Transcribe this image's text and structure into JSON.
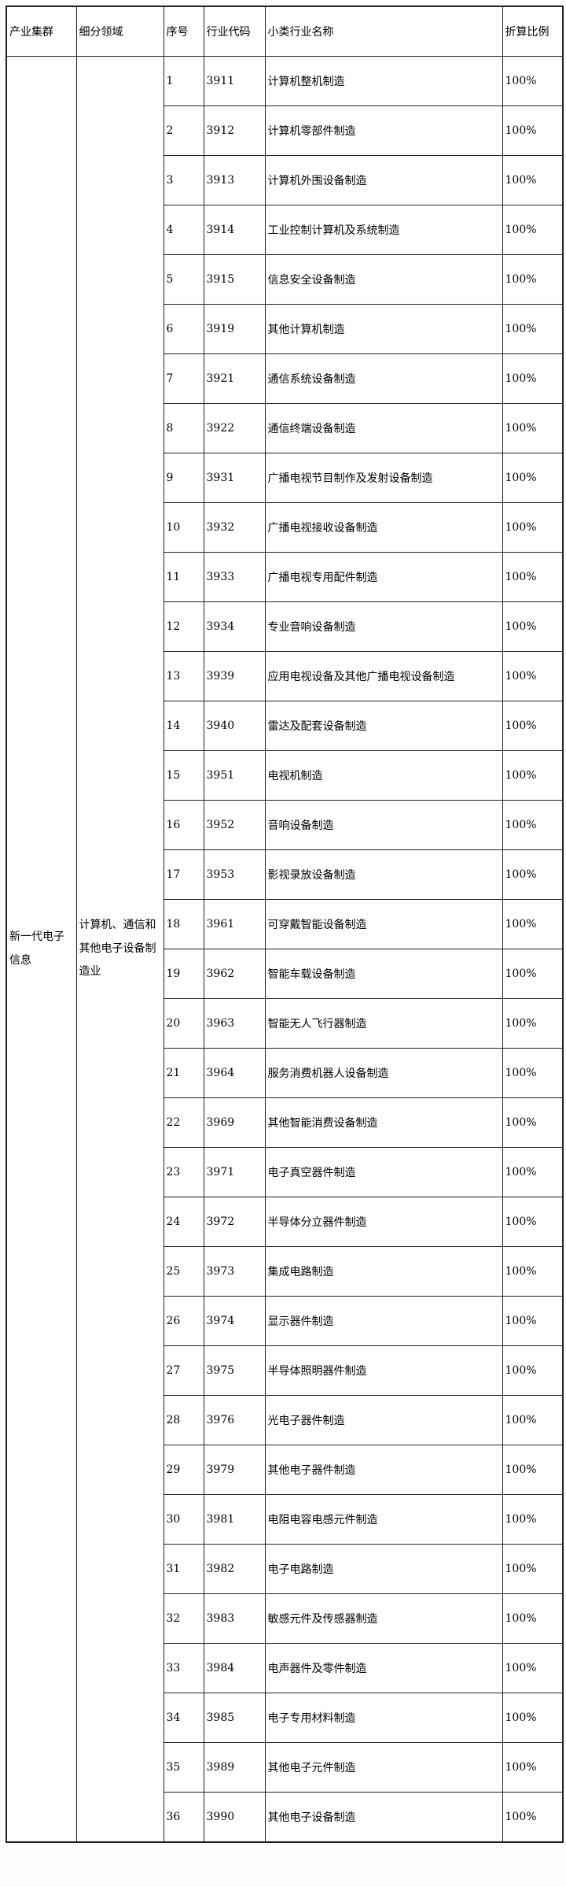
{
  "page": {
    "background": "#fdfdfd",
    "table_border_color": "#212121",
    "cell_background": "#ffffff"
  },
  "table": {
    "headers": {
      "cluster": "产业集群",
      "field": "细分领域",
      "no": "序号",
      "code": "行业代码",
      "name": "小类行业名称",
      "ratio": "折算比例"
    },
    "cluster": "新一代电子信息",
    "field": "计算机、通信和其他电子设备制造业",
    "rows": [
      {
        "no": "1",
        "code": "3911",
        "name": "计算机整机制造",
        "ratio": "100%"
      },
      {
        "no": "2",
        "code": "3912",
        "name": "计算机零部件制造",
        "ratio": "100%"
      },
      {
        "no": "3",
        "code": "3913",
        "name": "计算机外围设备制造",
        "ratio": "100%"
      },
      {
        "no": "4",
        "code": "3914",
        "name": "工业控制计算机及系统制造",
        "ratio": "100%"
      },
      {
        "no": "5",
        "code": "3915",
        "name": "信息安全设备制造",
        "ratio": "100%"
      },
      {
        "no": "6",
        "code": "3919",
        "name": "其他计算机制造",
        "ratio": "100%"
      },
      {
        "no": "7",
        "code": "3921",
        "name": "通信系统设备制造",
        "ratio": "100%"
      },
      {
        "no": "8",
        "code": "3922",
        "name": "通信终端设备制造",
        "ratio": "100%"
      },
      {
        "no": "9",
        "code": "3931",
        "name": "广播电视节目制作及发射设备制造",
        "ratio": "100%"
      },
      {
        "no": "10",
        "code": "3932",
        "name": "广播电视接收设备制造",
        "ratio": "100%"
      },
      {
        "no": "11",
        "code": "3933",
        "name": "广播电视专用配件制造",
        "ratio": "100%"
      },
      {
        "no": "12",
        "code": "3934",
        "name": "专业音响设备制造",
        "ratio": "100%"
      },
      {
        "no": "13",
        "code": "3939",
        "name": "应用电视设备及其他广播电视设备制造",
        "ratio": "100%"
      },
      {
        "no": "14",
        "code": "3940",
        "name": "雷达及配套设备制造",
        "ratio": "100%"
      },
      {
        "no": "15",
        "code": "3951",
        "name": "电视机制造",
        "ratio": "100%"
      },
      {
        "no": "16",
        "code": "3952",
        "name": "音响设备制造",
        "ratio": "100%"
      },
      {
        "no": "17",
        "code": "3953",
        "name": "影视录放设备制造",
        "ratio": "100%"
      },
      {
        "no": "18",
        "code": "3961",
        "name": "可穿戴智能设备制造",
        "ratio": "100%"
      },
      {
        "no": "19",
        "code": "3962",
        "name": "智能车载设备制造",
        "ratio": "100%"
      },
      {
        "no": "20",
        "code": "3963",
        "name": "智能无人飞行器制造",
        "ratio": "100%"
      },
      {
        "no": "21",
        "code": "3964",
        "name": "服务消费机器人设备制造",
        "ratio": "100%"
      },
      {
        "no": "22",
        "code": "3969",
        "name": "其他智能消费设备制造",
        "ratio": "100%"
      },
      {
        "no": "23",
        "code": "3971",
        "name": "电子真空器件制造",
        "ratio": "100%"
      },
      {
        "no": "24",
        "code": "3972",
        "name": "半导体分立器件制造",
        "ratio": "100%"
      },
      {
        "no": "25",
        "code": "3973",
        "name": "集成电路制造",
        "ratio": "100%"
      },
      {
        "no": "26",
        "code": "3974",
        "name": "显示器件制造",
        "ratio": "100%"
      },
      {
        "no": "27",
        "code": "3975",
        "name": "半导体照明器件制造",
        "ratio": "100%"
      },
      {
        "no": "28",
        "code": "3976",
        "name": "光电子器件制造",
        "ratio": "100%"
      },
      {
        "no": "29",
        "code": "3979",
        "name": "其他电子器件制造",
        "ratio": "100%"
      },
      {
        "no": "30",
        "code": "3981",
        "name": "电阻电容电感元件制造",
        "ratio": "100%"
      },
      {
        "no": "31",
        "code": "3982",
        "name": "电子电路制造",
        "ratio": "100%"
      },
      {
        "no": "32",
        "code": "3983",
        "name": "敏感元件及传感器制造",
        "ratio": "100%"
      },
      {
        "no": "33",
        "code": "3984",
        "name": "电声器件及零件制造",
        "ratio": "100%"
      },
      {
        "no": "34",
        "code": "3985",
        "name": "电子专用材料制造",
        "ratio": "100%"
      },
      {
        "no": "35",
        "code": "3989",
        "name": "其他电子元件制造",
        "ratio": "100%"
      },
      {
        "no": "36",
        "code": "3990",
        "name": "其他电子设备制造",
        "ratio": "100%"
      }
    ]
  }
}
